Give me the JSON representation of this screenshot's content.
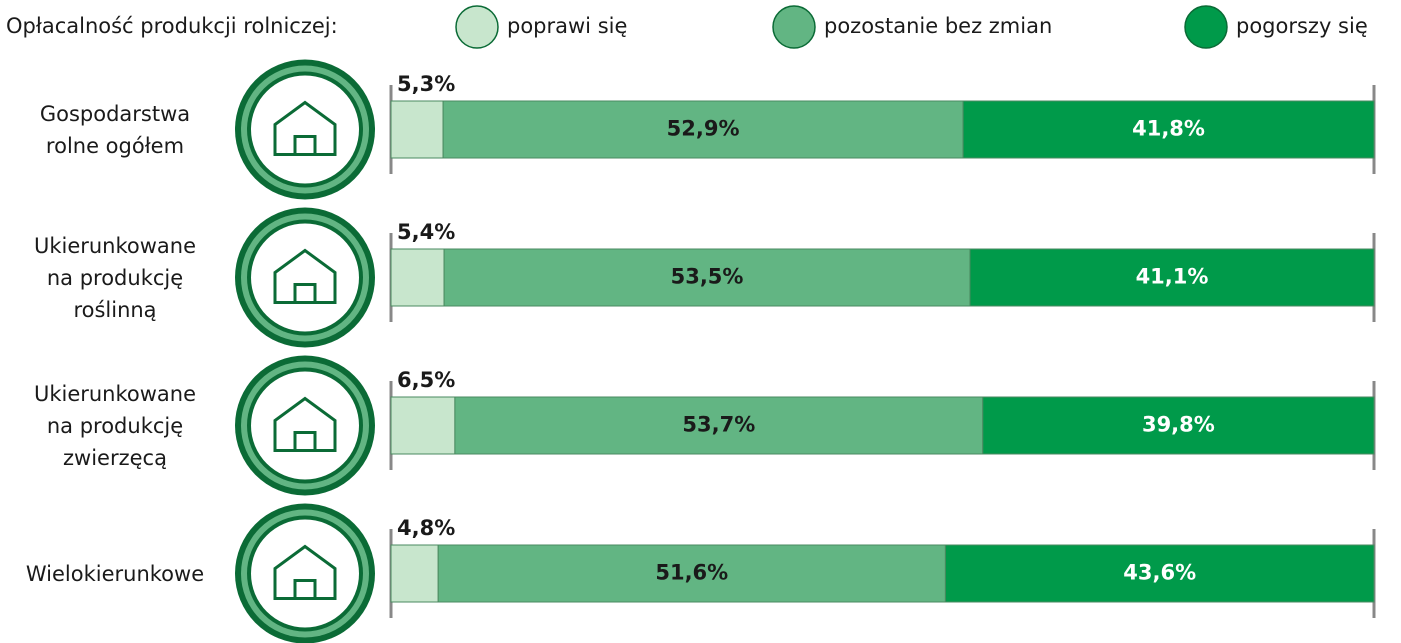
{
  "chart_data": {
    "type": "stacked-bar-horizontal",
    "legend_title": "Opłacalność produkcji rolniczej:",
    "categories": [
      "Gospodarstwa\nrolne ogółem",
      "Ukierunkowane\nna produkcję\nroślinną",
      "Ukierunkowane\nna produkcję\nzwierzęcą",
      "Wielokierunkowe"
    ],
    "series": [
      {
        "name": "poprawi się",
        "color": "#c8e6cd",
        "values": [
          5.3,
          5.4,
          6.5,
          4.8
        ],
        "value_labels": [
          "5,3%",
          "5,4%",
          "6,5%",
          "4,8%"
        ]
      },
      {
        "name": "pozostanie bez zmian",
        "color": "#62b583",
        "values": [
          52.9,
          53.5,
          53.7,
          51.6
        ],
        "value_labels": [
          "52,9%",
          "53,5%",
          "53,7%",
          "51,6%"
        ]
      },
      {
        "name": "pogorszy się",
        "color": "#009a4a",
        "values": [
          41.8,
          41.1,
          39.8,
          43.6
        ],
        "value_labels": [
          "41,8%",
          "41,1%",
          "39,8%",
          "43,6%"
        ]
      }
    ],
    "xlim": [
      0,
      100
    ]
  }
}
